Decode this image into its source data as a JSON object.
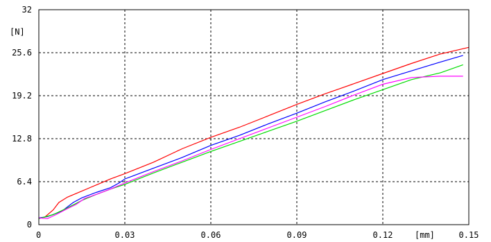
{
  "chart_data": {
    "type": "line",
    "title": "",
    "xlabel": "[mm]",
    "ylabel": "[N]",
    "xlim": [
      0,
      0.15
    ],
    "ylim": [
      0,
      32
    ],
    "x_ticks": [
      "0",
      "0.03",
      "0.06",
      "0.09",
      "0.12",
      "0.15"
    ],
    "y_ticks": [
      "0",
      "6.4",
      "12.8",
      "19.2",
      "25.6",
      "32"
    ],
    "grid": true,
    "series": [
      {
        "color": "#ff0000",
        "points": [
          [
            0.0,
            1.0
          ],
          [
            0.002,
            1.1
          ],
          [
            0.005,
            2.2
          ],
          [
            0.007,
            3.3
          ],
          [
            0.01,
            4.1
          ],
          [
            0.015,
            5.0
          ],
          [
            0.02,
            5.9
          ],
          [
            0.025,
            6.8
          ],
          [
            0.03,
            7.6
          ],
          [
            0.04,
            9.3
          ],
          [
            0.05,
            11.3
          ],
          [
            0.06,
            13.0
          ],
          [
            0.07,
            14.5
          ],
          [
            0.08,
            16.2
          ],
          [
            0.09,
            17.9
          ],
          [
            0.1,
            19.5
          ],
          [
            0.11,
            21.0
          ],
          [
            0.12,
            22.5
          ],
          [
            0.13,
            24.0
          ],
          [
            0.14,
            25.4
          ],
          [
            0.15,
            26.4
          ]
        ]
      },
      {
        "color": "#0000ff",
        "points": [
          [
            0.0,
            1.0
          ],
          [
            0.003,
            1.2
          ],
          [
            0.008,
            2.0
          ],
          [
            0.012,
            3.3
          ],
          [
            0.015,
            4.0
          ],
          [
            0.02,
            4.8
          ],
          [
            0.025,
            5.5
          ],
          [
            0.028,
            6.2
          ],
          [
            0.03,
            6.8
          ],
          [
            0.04,
            8.4
          ],
          [
            0.05,
            10.0
          ],
          [
            0.06,
            11.8
          ],
          [
            0.07,
            13.3
          ],
          [
            0.08,
            15.0
          ],
          [
            0.09,
            16.6
          ],
          [
            0.1,
            18.3
          ],
          [
            0.11,
            19.9
          ],
          [
            0.12,
            21.6
          ],
          [
            0.13,
            22.9
          ],
          [
            0.14,
            24.2
          ],
          [
            0.148,
            25.2
          ]
        ]
      },
      {
        "color": "#00dd00",
        "points": [
          [
            0.0,
            0.9
          ],
          [
            0.005,
            1.5
          ],
          [
            0.01,
            2.5
          ],
          [
            0.015,
            3.6
          ],
          [
            0.02,
            4.5
          ],
          [
            0.025,
            5.3
          ],
          [
            0.03,
            6.0
          ],
          [
            0.04,
            7.7
          ],
          [
            0.05,
            9.3
          ],
          [
            0.06,
            10.9
          ],
          [
            0.07,
            12.4
          ],
          [
            0.08,
            13.9
          ],
          [
            0.09,
            15.4
          ],
          [
            0.1,
            17.0
          ],
          [
            0.11,
            18.6
          ],
          [
            0.12,
            20.1
          ],
          [
            0.13,
            21.6
          ],
          [
            0.14,
            22.6
          ],
          [
            0.148,
            23.8
          ]
        ]
      },
      {
        "color": "#ff00ff",
        "points": [
          [
            0.0,
            1.0
          ],
          [
            0.003,
            0.9
          ],
          [
            0.006,
            1.5
          ],
          [
            0.01,
            2.4
          ],
          [
            0.013,
            3.0
          ],
          [
            0.016,
            3.9
          ],
          [
            0.02,
            4.5
          ],
          [
            0.025,
            5.3
          ],
          [
            0.03,
            6.2
          ],
          [
            0.04,
            7.9
          ],
          [
            0.05,
            9.5
          ],
          [
            0.06,
            11.2
          ],
          [
            0.07,
            12.8
          ],
          [
            0.08,
            14.4
          ],
          [
            0.09,
            16.0
          ],
          [
            0.1,
            17.6
          ],
          [
            0.11,
            19.3
          ],
          [
            0.12,
            20.9
          ],
          [
            0.13,
            21.9
          ],
          [
            0.14,
            22.1
          ],
          [
            0.148,
            22.1
          ]
        ]
      }
    ]
  }
}
